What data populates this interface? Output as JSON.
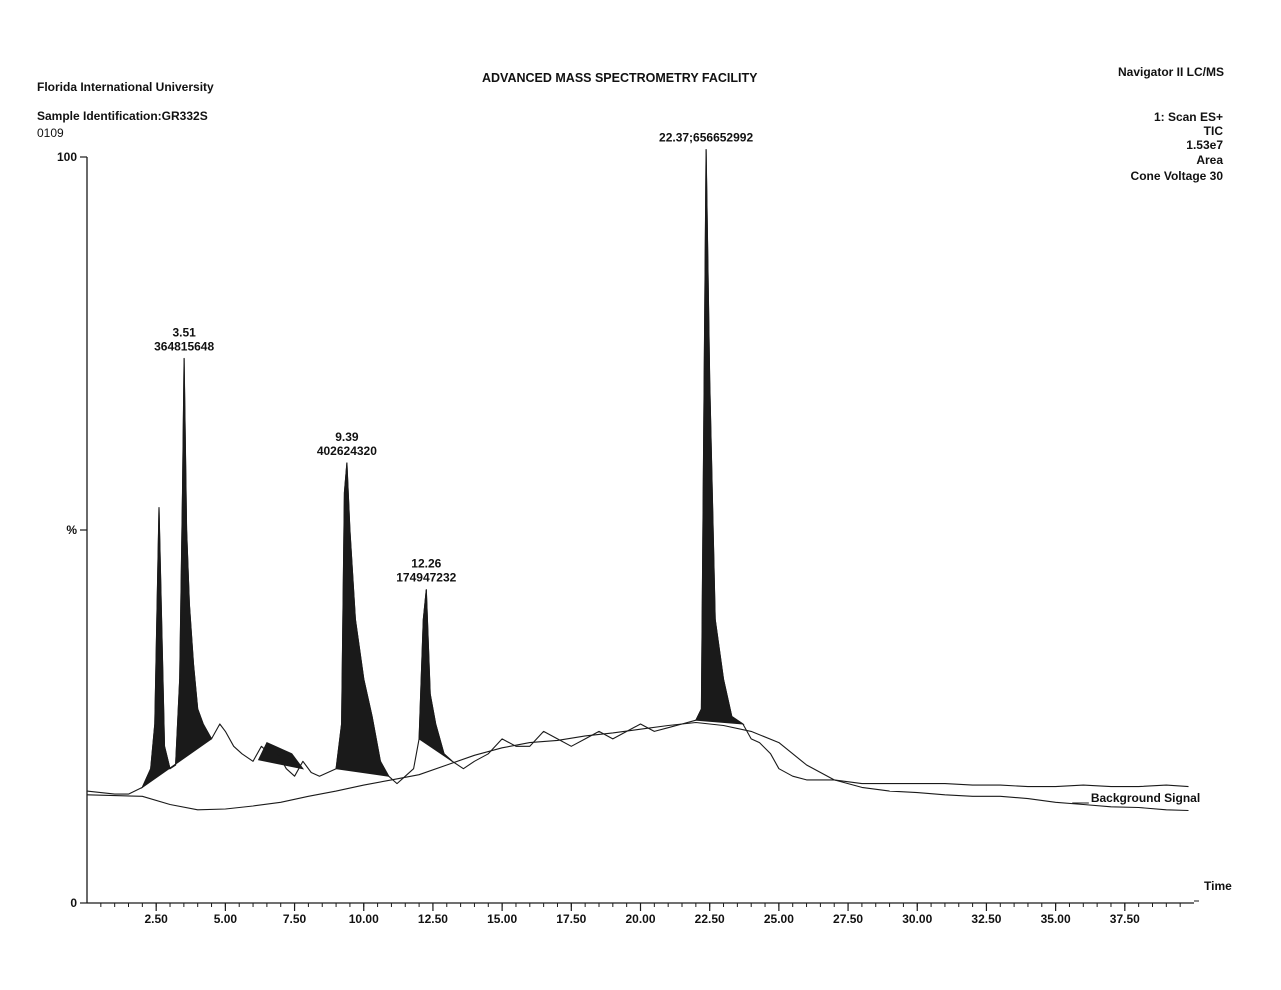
{
  "header": {
    "institution": "Florida International University",
    "facility": "ADVANCED MASS SPECTROMETRY FACILITY",
    "instrument": "Navigator II LC/MS",
    "sample_id": "Sample Identification:GR332S",
    "sample_no": "0109",
    "scan": "1: Scan ES+",
    "trace": "TIC",
    "max_intensity": "1.53e7",
    "mode": "Area",
    "cone_voltage": "Cone Voltage 30"
  },
  "chart_data": {
    "type": "line",
    "title": "ADVANCED MASS SPECTROMETRY FACILITY",
    "xlabel": "Time",
    "ylabel": "%",
    "xlim": [
      0,
      40
    ],
    "ylim": [
      0,
      100
    ],
    "x_ticks": [
      "2.50",
      "5.00",
      "7.50",
      "10.00",
      "12.50",
      "15.00",
      "17.50",
      "20.00",
      "22.50",
      "25.00",
      "27.50",
      "30.00",
      "32.50",
      "35.00",
      "37.50"
    ],
    "x_tick_values": [
      2.5,
      5,
      7.5,
      10,
      12.5,
      15,
      17.5,
      20,
      22.5,
      25,
      27.5,
      30,
      32.5,
      35,
      37.5
    ],
    "y_ticks": [
      "100",
      "%",
      "0"
    ],
    "y_tick_values": [
      100,
      50,
      0
    ],
    "peaks": [
      {
        "time": 3.51,
        "area": "364815648",
        "label_time": "3.51",
        "label_area": "364815648",
        "height": 73
      },
      {
        "time": 9.39,
        "area": "402624320",
        "label_time": "9.39",
        "label_area": "402624320",
        "height": 59
      },
      {
        "time": 12.26,
        "area": "174947232",
        "label_time": "12.26",
        "label_area": "174947232",
        "height": 42
      },
      {
        "time": 22.37,
        "area": "656652992",
        "label": "22.37;656652992",
        "height": 101
      }
    ],
    "series": [
      {
        "name": "",
        "x": [
          0,
          0.5,
          1,
          1.5,
          2,
          2.3,
          2.45,
          2.6,
          2.8,
          3.0,
          3.2,
          3.35,
          3.45,
          3.51,
          3.6,
          3.7,
          3.85,
          4.0,
          4.2,
          4.5,
          4.8,
          5.0,
          5.3,
          5.6,
          6.0,
          6.3,
          6.6,
          6.9,
          7.2,
          7.5,
          7.8,
          8.1,
          8.4,
          8.7,
          9.0,
          9.2,
          9.3,
          9.39,
          9.5,
          9.7,
          10.0,
          10.3,
          10.6,
          10.9,
          11.2,
          11.5,
          11.8,
          12.0,
          12.15,
          12.26,
          12.4,
          12.6,
          12.9,
          13.2,
          13.6,
          14.0,
          14.5,
          15.0,
          15.5,
          16.0,
          16.5,
          17.0,
          17.5,
          18.0,
          18.5,
          19.0,
          19.5,
          20.0,
          20.5,
          21.0,
          21.5,
          22.0,
          22.2,
          22.37,
          22.5,
          22.7,
          23.0,
          23.3,
          23.7,
          24.0,
          24.3,
          24.7,
          25.0,
          25.5,
          26.0,
          27.0,
          28.0,
          29.0,
          30.0,
          31.0,
          32.0,
          33.0,
          34.0,
          35.0,
          36.0,
          37.0,
          38.0,
          39.0,
          39.8
        ],
        "y": [
          15,
          14.8,
          14.6,
          14.6,
          15.5,
          18,
          24,
          53,
          21,
          18,
          18.5,
          30,
          55,
          73,
          50,
          40,
          32,
          26,
          24,
          22,
          24,
          23,
          21,
          20,
          19,
          21,
          20,
          20,
          18,
          17,
          19,
          17.5,
          17,
          17.5,
          18,
          24,
          55,
          59,
          50,
          38,
          30,
          25,
          19,
          17,
          16,
          17,
          18,
          22,
          38,
          42,
          28,
          24,
          20,
          19,
          18,
          19,
          20,
          22,
          21,
          21,
          23,
          22,
          21,
          22,
          23,
          22,
          23,
          24,
          23,
          23.5,
          24,
          24.5,
          26,
          101,
          70,
          38,
          30,
          25,
          24,
          22,
          21.5,
          20,
          18,
          17,
          16.5,
          16.5,
          16,
          16,
          16,
          16,
          15.8,
          15.8,
          15.6,
          15.6,
          15.8,
          15.6,
          15.6,
          15.8,
          15.6
        ]
      },
      {
        "name": "Background Signal",
        "x": [
          0,
          1,
          2,
          3,
          4,
          5,
          6,
          7,
          8,
          9,
          10,
          11,
          12,
          13,
          14,
          15,
          16,
          17,
          18,
          19,
          20,
          21,
          22,
          23,
          24,
          25,
          26,
          27,
          28,
          29,
          30,
          31,
          32,
          33,
          34,
          35,
          36,
          37,
          38,
          39,
          39.8
        ],
        "y": [
          14.5,
          14.4,
          14.3,
          13.2,
          12.5,
          12.6,
          13,
          13.5,
          14.3,
          15,
          15.8,
          16.5,
          17.2,
          18.5,
          19.8,
          20.8,
          21.5,
          21.8,
          22.4,
          22.8,
          23.3,
          23.8,
          24.2,
          23.8,
          23,
          21.5,
          18.5,
          16.5,
          15.5,
          15,
          14.8,
          14.5,
          14.3,
          14.3,
          14,
          13.5,
          13.2,
          12.9,
          12.8,
          12.5,
          12.4
        ]
      }
    ],
    "baseline_fill_color": "#1a1a1a",
    "line_color": "#1a1a1a",
    "grid": false
  }
}
